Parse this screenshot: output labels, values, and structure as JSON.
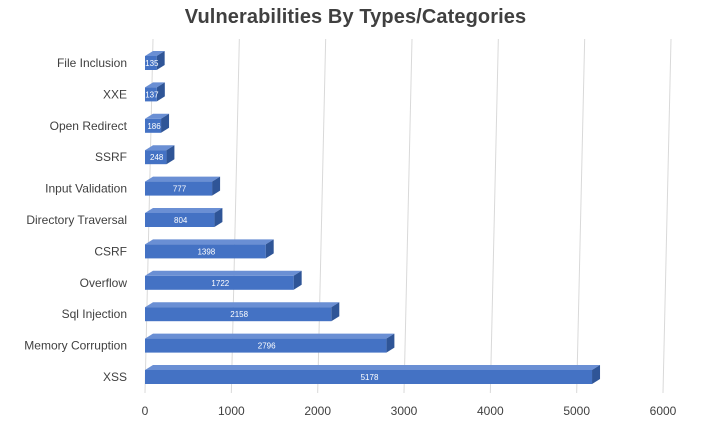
{
  "chart_data": {
    "type": "bar",
    "orientation": "horizontal",
    "style": "3d",
    "title": "Vulnerabilities By Types/Categories",
    "xlabel": "",
    "ylabel": "",
    "categories": [
      "File Inclusion",
      "XXE",
      "Open Redirect",
      "SSRF",
      "Input Validation",
      "Directory Traversal",
      "CSRF",
      "Overflow",
      "Sql Injection",
      "Memory Corruption",
      "XSS"
    ],
    "values": [
      135,
      137,
      186,
      248,
      777,
      804,
      1398,
      1722,
      2158,
      2796,
      5178
    ],
    "xlim": [
      0,
      6000
    ],
    "ticks": [
      0,
      1000,
      2000,
      3000,
      4000,
      5000,
      6000
    ],
    "grid": true,
    "legend": "none",
    "colors": {
      "bar_front": "#4472C4",
      "bar_top": "#6A8FD4",
      "bar_side": "#2F5597",
      "gridline": "#D9D9D9",
      "text": "#404040",
      "data_label": "#FFFFFF"
    }
  }
}
